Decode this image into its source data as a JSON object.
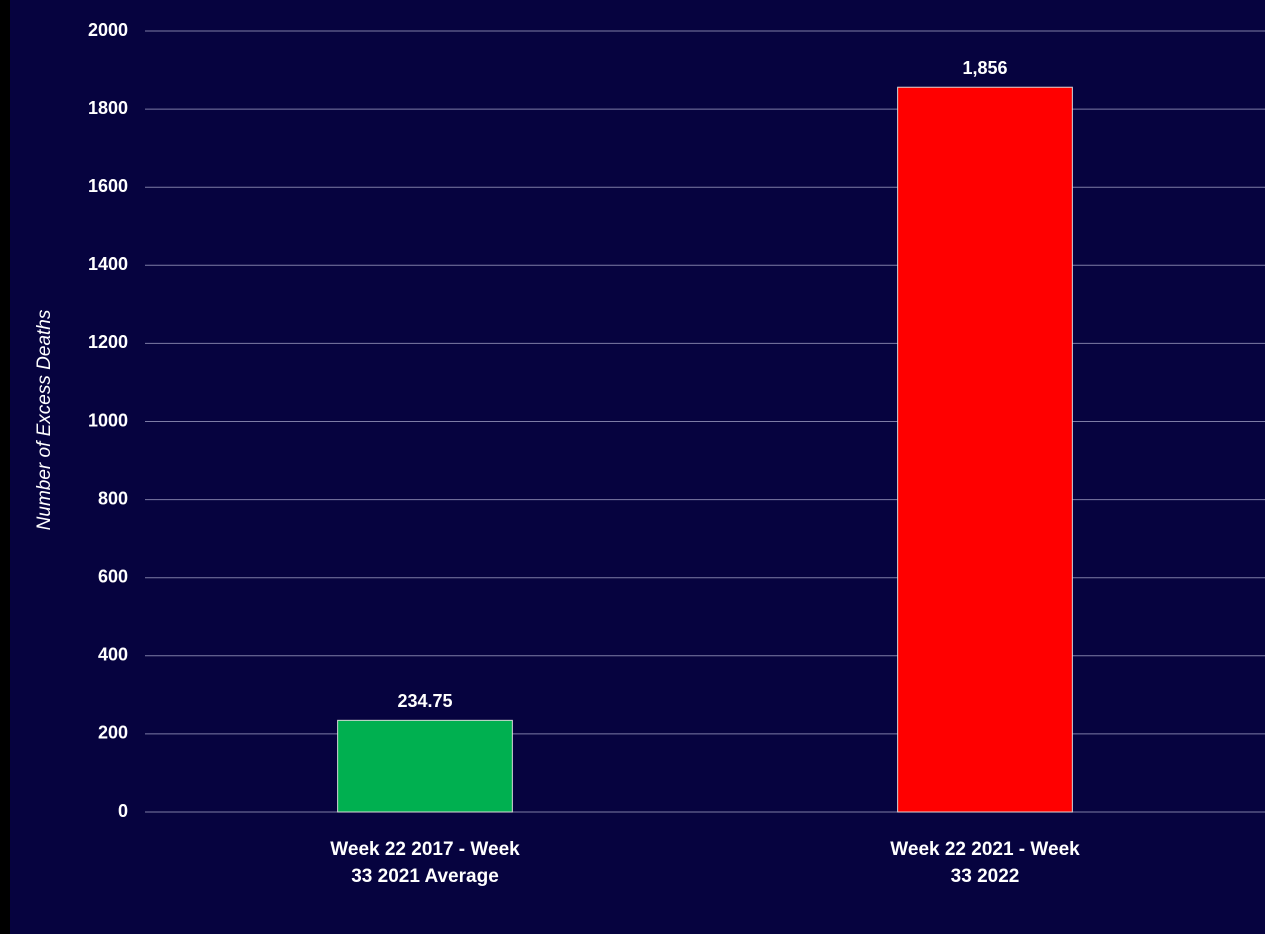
{
  "chart_data": {
    "type": "bar",
    "y_axis_label": "Number of Excess Deaths",
    "categories": [
      "Week 22 2017 - Week 33 2021 Average",
      "Week 22 2021 - Week 33 2022"
    ],
    "values": [
      234.75,
      1856
    ],
    "value_labels": [
      "234.75",
      "1,856"
    ],
    "colors": [
      "#00b050",
      "#ff0000"
    ],
    "ylim": [
      0,
      2000
    ],
    "yticks": [
      0,
      200,
      400,
      600,
      800,
      1000,
      1200,
      1400,
      1600,
      1800,
      2000
    ],
    "grid": true
  }
}
